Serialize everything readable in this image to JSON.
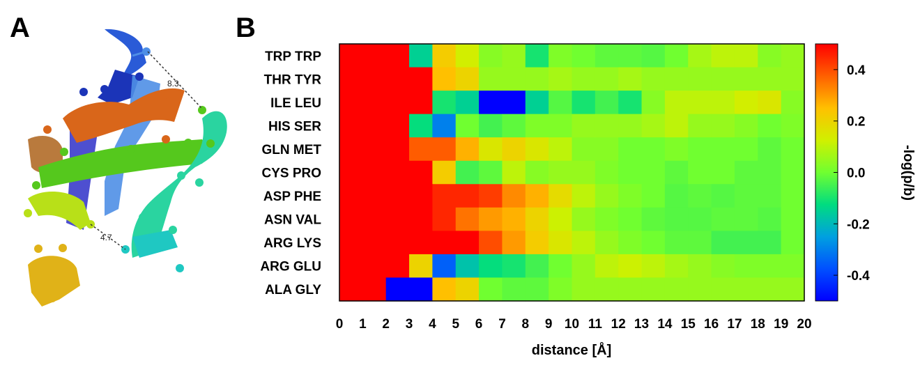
{
  "panels": {
    "a_label": "A",
    "b_label": "B"
  },
  "structure": {
    "distance_label_1": "8.3",
    "distance_label_2": "4.7"
  },
  "chart_data": {
    "type": "heatmap",
    "title": "",
    "xlabel": "distance [Å]",
    "ylabel": "",
    "colorbar_label": "-log(p/b)",
    "x_edges": [
      0,
      1,
      2,
      3,
      4,
      5,
      6,
      7,
      8,
      9,
      10,
      11,
      12,
      13,
      14,
      15,
      16,
      17,
      18,
      19,
      20
    ],
    "x_ticks": [
      "0",
      "1",
      "2",
      "3",
      "4",
      "5",
      "6",
      "7",
      "8",
      "9",
      "10",
      "11",
      "12",
      "13",
      "14",
      "15",
      "16",
      "17",
      "18",
      "19",
      "20"
    ],
    "rows": [
      "TRP TRP",
      "THR TYR",
      "ILE LEU",
      "HIS SER",
      "GLN MET",
      "CYS PRO",
      "ASP PHE",
      "ASN VAL",
      "ARG LYS",
      "ARG GLU",
      "ALA GLY"
    ],
    "colorbar_range": [
      -0.5,
      0.5
    ],
    "colorbar_ticks": [
      "0.4",
      "0.2",
      "0.0",
      "-0.2",
      "-0.4"
    ],
    "colorbar_tick_values": [
      0.4,
      0.2,
      0.0,
      -0.2,
      -0.4
    ],
    "values": [
      [
        0.5,
        0.5,
        0.5,
        -0.15,
        0.22,
        0.13,
        0.03,
        0.05,
        -0.1,
        0.02,
        0.0,
        -0.02,
        -0.02,
        -0.03,
        0.0,
        0.07,
        0.1,
        0.1,
        0.03,
        0.05
      ],
      [
        0.5,
        0.5,
        0.5,
        0.5,
        0.25,
        0.2,
        0.05,
        0.05,
        0.05,
        0.07,
        0.05,
        0.05,
        0.07,
        0.05,
        0.05,
        0.05,
        0.05,
        0.05,
        0.05,
        0.05
      ],
      [
        0.5,
        0.5,
        0.5,
        0.5,
        -0.1,
        -0.15,
        -0.5,
        -0.5,
        -0.15,
        -0.03,
        -0.1,
        -0.05,
        -0.1,
        0.03,
        0.1,
        0.1,
        0.1,
        0.13,
        0.15,
        0.03
      ],
      [
        0.5,
        0.5,
        0.5,
        -0.12,
        -0.3,
        0.0,
        -0.05,
        -0.02,
        0.02,
        0.02,
        0.05,
        0.05,
        0.05,
        0.07,
        0.1,
        0.05,
        0.05,
        0.03,
        0.0,
        0.02
      ],
      [
        0.5,
        0.5,
        0.5,
        0.38,
        0.38,
        0.27,
        0.15,
        0.2,
        0.15,
        0.1,
        0.03,
        0.03,
        0.0,
        0.0,
        0.02,
        0.0,
        0.0,
        0.0,
        -0.02,
        0.0
      ],
      [
        0.5,
        0.5,
        0.5,
        0.5,
        0.22,
        -0.05,
        -0.02,
        0.1,
        0.03,
        0.05,
        0.05,
        0.02,
        0.0,
        0.0,
        -0.02,
        0.0,
        0.0,
        -0.02,
        -0.02,
        0.0
      ],
      [
        0.5,
        0.5,
        0.5,
        0.5,
        0.45,
        0.45,
        0.42,
        0.32,
        0.27,
        0.18,
        0.1,
        0.05,
        0.02,
        0.0,
        -0.03,
        -0.02,
        -0.03,
        -0.02,
        -0.02,
        0.0
      ],
      [
        0.5,
        0.5,
        0.5,
        0.5,
        0.45,
        0.35,
        0.3,
        0.27,
        0.2,
        0.12,
        0.05,
        0.02,
        0.0,
        -0.02,
        -0.03,
        -0.03,
        -0.02,
        -0.02,
        -0.03,
        0.0
      ],
      [
        0.5,
        0.5,
        0.5,
        0.5,
        0.5,
        0.5,
        0.4,
        0.3,
        0.22,
        0.15,
        0.1,
        0.05,
        0.02,
        0.0,
        -0.02,
        -0.02,
        -0.05,
        -0.05,
        -0.05,
        0.0
      ],
      [
        0.5,
        0.5,
        0.5,
        0.2,
        -0.35,
        -0.18,
        -0.12,
        -0.1,
        -0.05,
        0.0,
        0.05,
        0.1,
        0.12,
        0.1,
        0.07,
        0.05,
        0.03,
        0.02,
        0.02,
        0.02
      ],
      [
        0.5,
        0.5,
        -0.5,
        -0.5,
        0.25,
        0.2,
        0.0,
        -0.02,
        -0.02,
        0.02,
        0.05,
        0.05,
        0.05,
        0.05,
        0.05,
        0.05,
        0.05,
        0.05,
        0.05,
        0.05
      ]
    ]
  }
}
